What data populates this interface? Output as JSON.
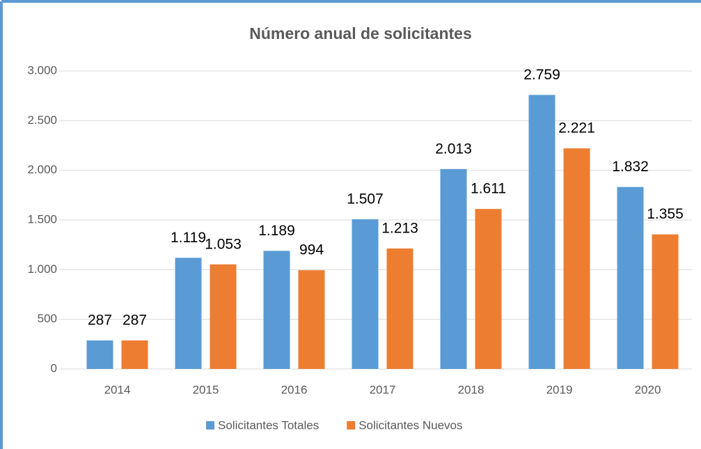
{
  "chart_data": {
    "type": "bar",
    "title": "Número anual de solicitantes",
    "categories": [
      "2014",
      "2015",
      "2016",
      "2017",
      "2018",
      "2019",
      "2020"
    ],
    "series": [
      {
        "name": "Solicitantes Totales",
        "color": "#5b9bd5",
        "values": [
          287,
          1119,
          1189,
          1507,
          2013,
          2759,
          1832
        ],
        "value_labels": [
          "287",
          "1.119",
          "1.189",
          "1.507",
          "2.013",
          "2.759",
          "1.832"
        ]
      },
      {
        "name": "Solicitantes Nuevos",
        "color": "#ed7d31",
        "values": [
          287,
          1053,
          994,
          1213,
          1611,
          2221,
          1355
        ],
        "value_labels": [
          "287",
          "1.053",
          "994",
          "1.213",
          "1.611",
          "2.221",
          "1.355"
        ]
      }
    ],
    "ylim": [
      0,
      3000
    ],
    "yticks": [
      0,
      500,
      {
        "value": 1000,
        "label": "1.000"
      },
      {
        "value": 1500,
        "label": "1.500"
      },
      {
        "value": 2000,
        "label": "2.000"
      },
      {
        "value": 2500,
        "label": "2.500"
      },
      {
        "value": 3000,
        "label": "3.000"
      }
    ],
    "grid": true,
    "legend": "bottom"
  }
}
